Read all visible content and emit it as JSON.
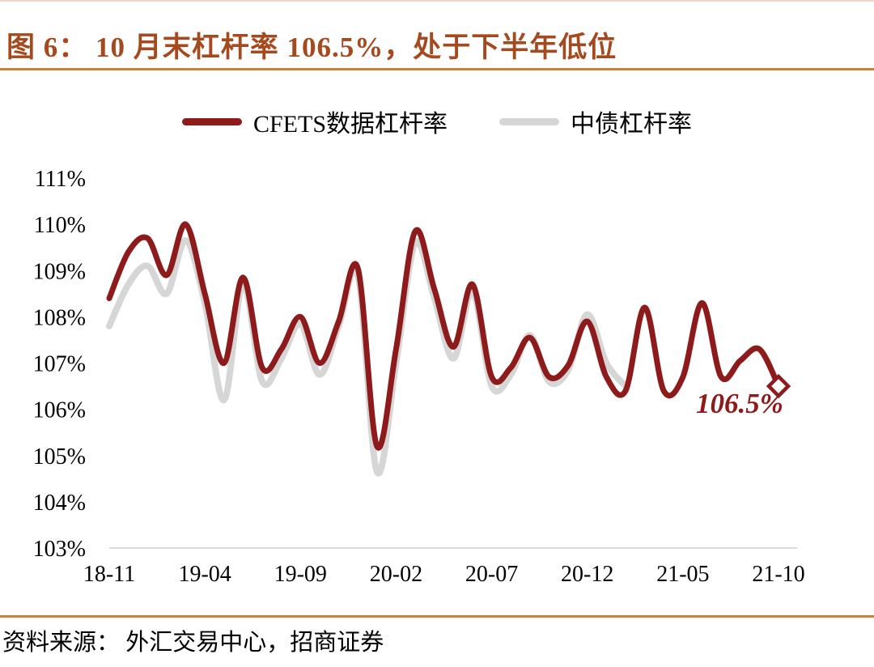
{
  "title": "图 6： 10 月末杠杆率 106.5%，处于下半年低位",
  "source": "资料来源： 外汇交易中心，招商证券",
  "annotation": {
    "text": "106.5%"
  },
  "colors": {
    "title": "#a5491e",
    "rule": "#c8823c",
    "cfets_line": "#8e1b1b",
    "zhongzhai_line": "#d6d6d6",
    "axis_line": "#dadada",
    "annotation": "#8e1b1b",
    "tick_text": "#000000"
  },
  "legend": [
    {
      "label": "CFETS数据杠杆率",
      "color": "#8e1b1b"
    },
    {
      "label": "中债杠杆率",
      "color": "#d6d6d6"
    }
  ],
  "chart_data": {
    "type": "line",
    "title": "图 6： 10 月末杠杆率 106.5%，处于下半年低位",
    "xlabel": "",
    "ylabel": "",
    "ylim": [
      103,
      111
    ],
    "grid": false,
    "legend_position": "top",
    "y_tick_labels": [
      "111%",
      "110%",
      "109%",
      "108%",
      "107%",
      "106%",
      "105%",
      "104%",
      "103%"
    ],
    "x_tick_labels": [
      "18-11",
      "19-04",
      "19-09",
      "20-02",
      "20-07",
      "20-12",
      "21-05",
      "21-10"
    ],
    "x": [
      "18-11",
      "18-12",
      "19-01",
      "19-02",
      "19-03",
      "19-04",
      "19-05",
      "19-06",
      "19-07",
      "19-08",
      "19-09",
      "19-10",
      "19-11",
      "19-12",
      "20-01",
      "20-02",
      "20-03",
      "20-04",
      "20-05",
      "20-06",
      "20-07",
      "20-08",
      "20-09",
      "20-10",
      "20-11",
      "20-12",
      "21-01",
      "21-02",
      "21-03",
      "21-04",
      "21-05",
      "21-06",
      "21-07",
      "21-08",
      "21-09",
      "21-10"
    ],
    "series": [
      {
        "name": "CFETS数据杠杆率",
        "color": "#8e1b1b",
        "stroke_width": 7,
        "values": [
          108.4,
          109.4,
          109.7,
          108.9,
          110.0,
          108.5,
          107.0,
          108.85,
          106.9,
          107.3,
          108.0,
          107.0,
          107.9,
          109.05,
          105.2,
          107.3,
          109.85,
          108.6,
          107.35,
          108.7,
          106.7,
          106.9,
          107.55,
          106.7,
          106.95,
          107.9,
          106.7,
          106.4,
          108.2,
          106.4,
          106.7,
          108.3,
          106.7,
          107.05,
          107.3,
          106.5
        ]
      },
      {
        "name": "中债杠杆率",
        "color": "#d6d6d6",
        "stroke_width": 8,
        "values": [
          107.8,
          108.7,
          109.1,
          108.5,
          109.65,
          108.3,
          106.2,
          108.7,
          106.6,
          107.1,
          107.85,
          106.75,
          107.8,
          108.9,
          104.65,
          107.0,
          109.6,
          108.4,
          107.1,
          108.55,
          106.5,
          106.75,
          107.6,
          106.6,
          106.85,
          108.05,
          107.0,
          106.5,
          null,
          null,
          null,
          null,
          null,
          null,
          null,
          null
        ]
      }
    ],
    "end_marker": {
      "series": "CFETS数据杠杆率",
      "x": "21-10",
      "y": 106.5,
      "shape": "open-diamond"
    },
    "annotation": {
      "text": "106.5%",
      "x": "21-10",
      "y": 106.5
    }
  }
}
